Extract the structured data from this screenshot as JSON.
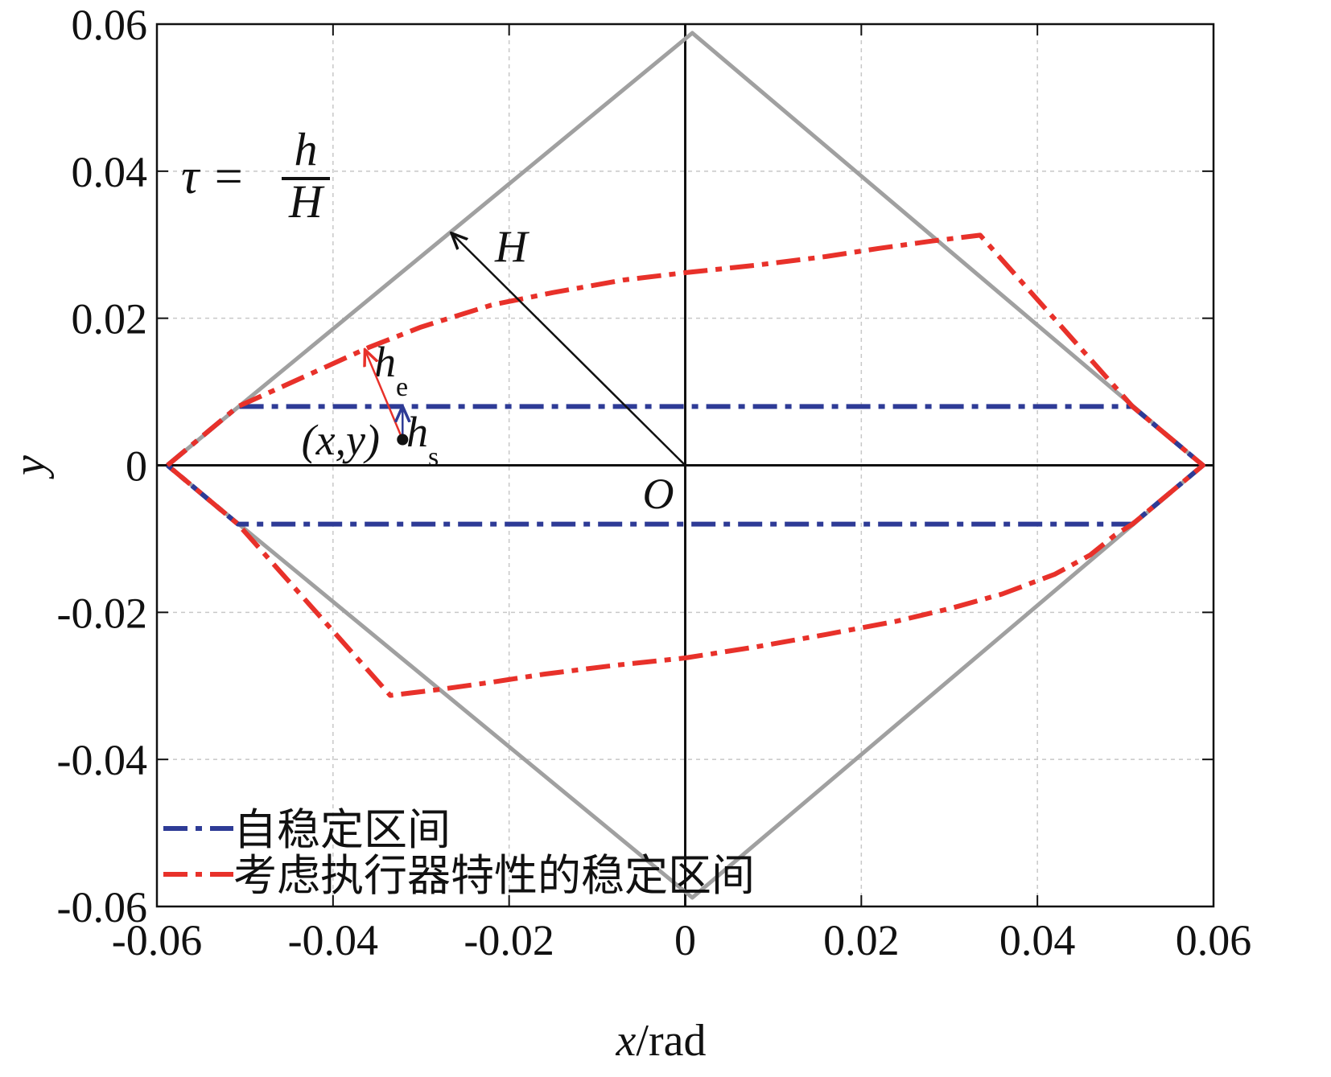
{
  "chart_data": {
    "type": "line",
    "title": "",
    "xlabel": "x/rad",
    "xlabel_var": "x",
    "xlabel_unit": "/rad",
    "ylabel": "y",
    "xlim": [
      -0.06,
      0.06
    ],
    "ylim": [
      -0.06,
      0.06
    ],
    "x_ticks": [
      -0.06,
      -0.04,
      -0.02,
      0,
      0.02,
      0.04,
      0.06
    ],
    "y_ticks": [
      -0.06,
      -0.04,
      -0.02,
      0,
      0.02,
      0.04,
      0.06
    ],
    "x_tick_labels": [
      "-0.06",
      "-0.04",
      "-0.02",
      "0",
      "0.02",
      "0.04",
      "0.06"
    ],
    "y_tick_labels": [
      "-0.06",
      "-0.04",
      "-0.02",
      "0",
      "0.02",
      "0.04",
      "0.06"
    ],
    "grid": true,
    "legend_position": "bottom-left",
    "series": [
      {
        "name": "",
        "style": "solid",
        "color": "#a0a0a0",
        "x": [
          -0.0588,
          0.0008,
          0.0588,
          0.0008,
          -0.0588
        ],
        "y": [
          0,
          0.0588,
          0,
          -0.0588,
          0
        ]
      },
      {
        "name": "自稳定区间",
        "style": "dashdot",
        "color": "#2e3b96",
        "x": [
          -0.0588,
          -0.0508,
          0.0508,
          0.0588,
          0.0508,
          -0.0508,
          -0.0588
        ],
        "y": [
          0,
          0.008,
          0.008,
          0,
          -0.008,
          -0.008,
          0
        ]
      },
      {
        "name": "考虑执行器特性的稳定区间",
        "style": "dashdot",
        "color": "#e8312a",
        "x": [
          -0.0588,
          -0.0508,
          -0.048,
          -0.043,
          -0.036,
          -0.03,
          -0.022,
          -0.015,
          -0.007,
          0,
          0.008,
          0.016,
          0.022,
          0.028,
          0.0335,
          0.0508,
          0.0588,
          0.0508,
          0.0488,
          0.046,
          0.042,
          0.036,
          0.03,
          0.024,
          0.016,
          0.008,
          0,
          -0.008,
          -0.016,
          -0.022,
          -0.028,
          -0.0335,
          -0.0508,
          -0.0588
        ],
        "y": [
          0,
          0.008,
          0.0095,
          0.0122,
          0.016,
          0.0188,
          0.0218,
          0.0235,
          0.0252,
          0.0262,
          0.0272,
          0.0284,
          0.0295,
          0.0305,
          0.0313,
          0.008,
          0,
          -0.008,
          -0.0095,
          -0.0122,
          -0.0148,
          -0.0175,
          -0.0195,
          -0.0212,
          -0.023,
          -0.0247,
          -0.0262,
          -0.0272,
          -0.0284,
          -0.0295,
          -0.0305,
          -0.0313,
          -0.008,
          0
        ]
      }
    ],
    "annotations": {
      "formula_lhs": "τ =",
      "formula_num": "h",
      "formula_den": "H",
      "H_label": "H",
      "he_main": "h",
      "he_sub": "e",
      "hs_main": "h",
      "hs_sub": "s",
      "point_label": "(x,y)",
      "origin_label": "O",
      "point": [
        -0.0321,
        0.0035
      ],
      "he_arrow_from": [
        -0.0321,
        0.0035
      ],
      "he_arrow_to": [
        -0.0363,
        0.0155
      ],
      "hs_arrow_from": [
        -0.0321,
        0.0035
      ],
      "hs_arrow_to": [
        -0.0321,
        0.0078
      ],
      "H_arrow_from": [
        0,
        0
      ],
      "H_arrow_to": [
        -0.0264,
        0.0314
      ]
    }
  }
}
